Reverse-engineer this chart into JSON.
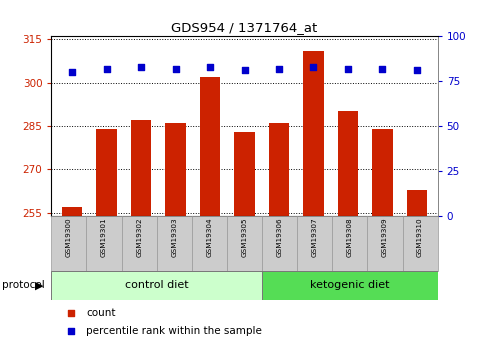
{
  "title": "GDS954 / 1371764_at",
  "samples": [
    "GSM19300",
    "GSM19301",
    "GSM19302",
    "GSM19303",
    "GSM19304",
    "GSM19305",
    "GSM19306",
    "GSM19307",
    "GSM19308",
    "GSM19309",
    "GSM19310"
  ],
  "counts": [
    257,
    284,
    287,
    286,
    302,
    283,
    286,
    311,
    290,
    284,
    263
  ],
  "percentile_ranks": [
    80,
    82,
    83,
    82,
    83,
    81,
    82,
    83,
    82,
    82,
    81
  ],
  "n_control": 6,
  "n_keto": 5,
  "group_labels": [
    "control diet",
    "ketogenic diet"
  ],
  "ctrl_color": "#ccffcc",
  "keto_color": "#55dd55",
  "bar_color": "#cc2200",
  "dot_color": "#0000cc",
  "ylim_left": [
    254,
    316
  ],
  "ylim_right": [
    0,
    100
  ],
  "yticks_left": [
    255,
    270,
    285,
    300,
    315
  ],
  "yticks_right": [
    0,
    25,
    50,
    75,
    100
  ],
  "label_count": "count",
  "label_percentile": "percentile rank within the sample",
  "protocol_label": "protocol",
  "sample_bg": "#cccccc",
  "bar_bottom": 254
}
